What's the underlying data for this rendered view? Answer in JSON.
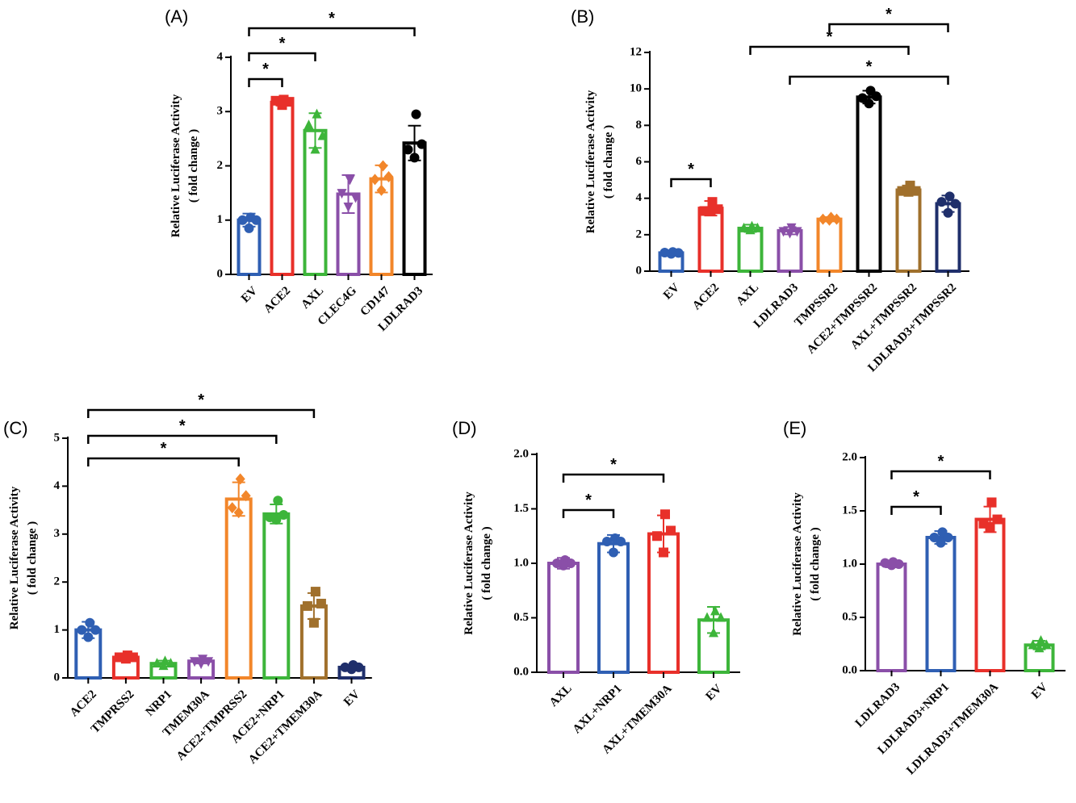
{
  "ylabel_line1": "Relative Luciferase Activity",
  "ylabel_line2": "( fold change )",
  "chart_data": [
    {
      "id": "A",
      "panel_label": "(A)",
      "type": "bar",
      "ylim": [
        0,
        4
      ],
      "yticks": [
        "0",
        "1",
        "2",
        "3",
        "4"
      ],
      "categories": [
        "EV",
        "ACE2",
        "AXL",
        "CLEC4G",
        "CD147",
        "LDLRAD3"
      ],
      "values": [
        1.0,
        3.17,
        2.65,
        1.48,
        1.76,
        2.42
      ],
      "errors": [
        0.12,
        0.06,
        0.32,
        0.35,
        0.25,
        0.32
      ],
      "colors": [
        "#2f5fb3",
        "#e8302a",
        "#3db53a",
        "#8a4fa8",
        "#f2862a",
        "#000000"
      ],
      "markers": [
        "circle",
        "square",
        "triangle",
        "triangle-down",
        "diamond",
        "circle"
      ],
      "points": [
        [
          1.05,
          1.0,
          0.85,
          1.0
        ],
        [
          3.22,
          3.18,
          3.12,
          3.2
        ],
        [
          2.95,
          2.55,
          2.3,
          2.75
        ],
        [
          1.75,
          1.42,
          1.25,
          1.5
        ],
        [
          2.0,
          1.8,
          1.55,
          1.75
        ],
        [
          2.95,
          2.4,
          2.15,
          2.3
        ]
      ],
      "significance": [
        {
          "from": 0,
          "to": 1,
          "label": "*"
        },
        {
          "from": 0,
          "to": 2,
          "label": "*"
        },
        {
          "from": 0,
          "to": 5,
          "label": "*"
        }
      ]
    },
    {
      "id": "B",
      "panel_label": "(B)",
      "type": "bar",
      "ylim": [
        0,
        12
      ],
      "yticks": [
        "0",
        "2",
        "4",
        "6",
        "8",
        "10",
        "12"
      ],
      "categories": [
        "EV",
        "ACE2",
        "AXL",
        "LDLRAD3",
        "TMPSSR2",
        "ACE2+TMPSSR2",
        "AXL+TMPSSR2",
        "LDLRAD3+TMPSSR2"
      ],
      "values": [
        1.0,
        3.45,
        2.35,
        2.22,
        2.85,
        9.55,
        4.45,
        3.7
      ],
      "errors": [
        0.1,
        0.4,
        0.2,
        0.2,
        0.12,
        0.35,
        0.25,
        0.45
      ],
      "colors": [
        "#2f5fb3",
        "#e8302a",
        "#3db53a",
        "#8a4fa8",
        "#f2862a",
        "#000000",
        "#a0702c",
        "#1f2f6b"
      ],
      "markers": [
        "circle",
        "square",
        "triangle",
        "triangle-down",
        "diamond",
        "circle",
        "square",
        "circle"
      ],
      "points": [
        [
          1.05,
          1.0,
          0.95,
          1.02
        ],
        [
          3.8,
          3.4,
          3.3,
          3.3
        ],
        [
          2.45,
          2.35,
          2.25,
          2.35
        ],
        [
          2.4,
          2.2,
          2.1,
          2.2
        ],
        [
          2.95,
          2.85,
          2.8,
          2.85
        ],
        [
          9.9,
          9.6,
          9.2,
          9.5
        ],
        [
          4.7,
          4.4,
          4.35,
          4.4
        ],
        [
          4.1,
          3.7,
          3.2,
          3.8
        ]
      ],
      "significance": [
        {
          "from": 0,
          "to": 1,
          "label": "*"
        },
        {
          "from": 2,
          "to": 6,
          "label": "*"
        },
        {
          "from": 3,
          "to": 7,
          "label": "*"
        },
        {
          "from": 4,
          "to": 7,
          "label": "*"
        }
      ]
    },
    {
      "id": "C",
      "panel_label": "(C)",
      "type": "bar",
      "ylim": [
        0,
        5
      ],
      "yticks": [
        "0",
        "1",
        "2",
        "3",
        "4",
        "5"
      ],
      "categories": [
        "ACE2",
        "TMPRSS2",
        "NRP1",
        "TMEM30A",
        "ACE2+TMPRSS2",
        "ACE2+NRP1",
        "ACE2+TMEM30A",
        "EV"
      ],
      "values": [
        1.0,
        0.43,
        0.3,
        0.35,
        3.73,
        3.42,
        1.5,
        0.22
      ],
      "errors": [
        0.17,
        0.05,
        0.06,
        0.05,
        0.35,
        0.2,
        0.27,
        0.05
      ],
      "colors": [
        "#2f5fb3",
        "#e8302a",
        "#3db53a",
        "#8a4fa8",
        "#f2862a",
        "#3db53a",
        "#a0702c",
        "#1f2f6b"
      ],
      "markers": [
        "circle",
        "square",
        "triangle",
        "triangle-down",
        "diamond",
        "circle",
        "square",
        "circle"
      ],
      "points": [
        [
          1.15,
          1.0,
          0.85,
          1.0
        ],
        [
          0.47,
          0.43,
          0.4,
          0.43
        ],
        [
          0.35,
          0.3,
          0.25,
          0.3
        ],
        [
          0.4,
          0.35,
          0.3,
          0.35
        ],
        [
          4.15,
          3.8,
          3.45,
          3.55
        ],
        [
          3.7,
          3.4,
          3.3,
          3.35
        ],
        [
          1.8,
          1.55,
          1.15,
          1.5
        ],
        [
          0.27,
          0.22,
          0.18,
          0.22
        ]
      ],
      "significance": [
        {
          "from": 0,
          "to": 4,
          "label": "*"
        },
        {
          "from": 0,
          "to": 5,
          "label": "*"
        },
        {
          "from": 0,
          "to": 6,
          "label": "*"
        }
      ]
    },
    {
      "id": "D",
      "panel_label": "(D)",
      "type": "bar",
      "ylim": [
        0,
        2.0
      ],
      "yticks": [
        "0.0",
        "0.5",
        "1.0",
        "1.5",
        "2.0"
      ],
      "categories": [
        "AXL",
        "AXL+NRP1",
        "AXL+TMEM30A",
        "EV"
      ],
      "values": [
        1.0,
        1.18,
        1.27,
        0.48
      ],
      "errors": [
        0.05,
        0.08,
        0.17,
        0.12
      ],
      "colors": [
        "#8a4fa8",
        "#2f5fb3",
        "#e8302a",
        "#3db53a"
      ],
      "markers": [
        "circle",
        "circle",
        "square",
        "triangle"
      ],
      "points": [
        [
          1.03,
          1.0,
          0.98,
          1.0
        ],
        [
          1.23,
          1.2,
          1.1,
          1.2
        ],
        [
          1.45,
          1.3,
          1.1,
          1.25
        ],
        [
          0.56,
          0.5,
          0.36,
          0.5
        ]
      ],
      "significance": [
        {
          "from": 0,
          "to": 1,
          "label": "*"
        },
        {
          "from": 0,
          "to": 2,
          "label": "*"
        }
      ]
    },
    {
      "id": "E",
      "panel_label": "(E)",
      "type": "bar",
      "ylim": [
        0,
        2.0
      ],
      "yticks": [
        "0.0",
        "0.5",
        "1.0",
        "1.5",
        "2.0"
      ],
      "categories": [
        "LDLRAD3",
        "LDLRAD3+NRP1",
        "LDLRAD3+TMEM30A",
        "EV"
      ],
      "values": [
        1.0,
        1.25,
        1.42,
        0.24
      ],
      "errors": [
        0.03,
        0.06,
        0.12,
        0.04
      ],
      "colors": [
        "#8a4fa8",
        "#2f5fb3",
        "#e8302a",
        "#3db53a"
      ],
      "markers": [
        "circle",
        "circle",
        "square",
        "triangle"
      ],
      "points": [
        [
          1.02,
          1.0,
          0.99,
          1.01
        ],
        [
          1.3,
          1.25,
          1.2,
          1.25
        ],
        [
          1.58,
          1.42,
          1.35,
          1.38
        ],
        [
          0.28,
          0.24,
          0.21,
          0.24
        ]
      ],
      "significance": [
        {
          "from": 0,
          "to": 1,
          "label": "*"
        },
        {
          "from": 0,
          "to": 2,
          "label": "*"
        }
      ]
    }
  ]
}
